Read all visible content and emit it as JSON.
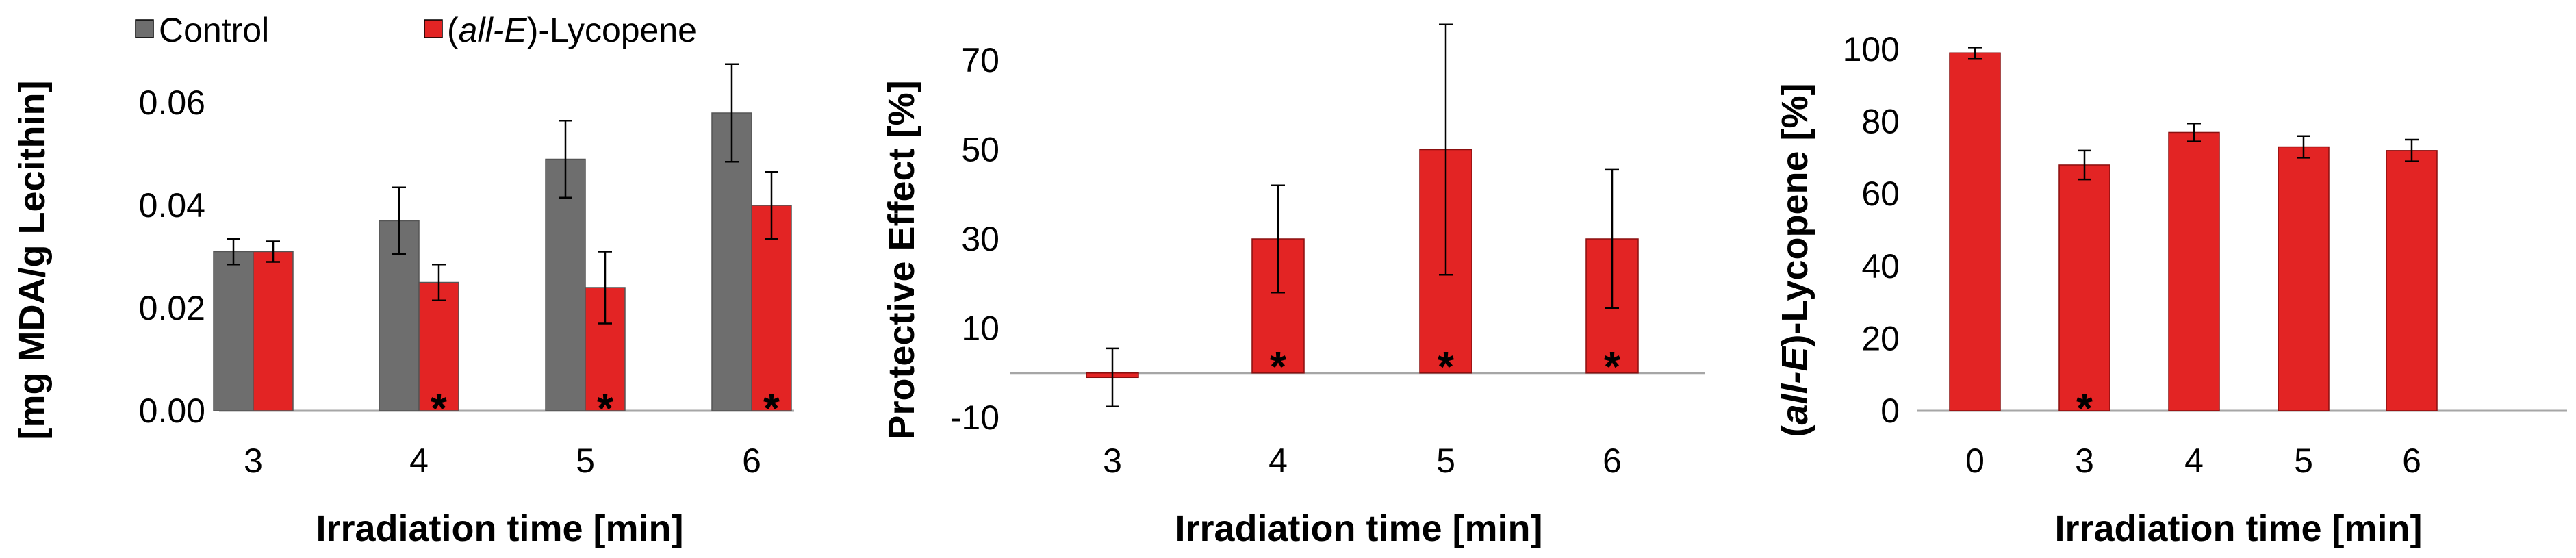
{
  "colors": {
    "control": "#6e6e6e",
    "lycopene": "#e32424",
    "axis": "#a6a6a6",
    "error_bar": "#000000"
  },
  "legend": {
    "control": "Control",
    "lycopene_italic": "all-E",
    "lycopene_prefix": "(",
    "lycopene_suffix": ")-Lycopene"
  },
  "significance_marker": "*",
  "chart_data": [
    {
      "type": "bar",
      "title": "",
      "xlabel": "Irradiation time [min]",
      "ylabel": "[mg MDA/g Lecithin]",
      "categories": [
        "3",
        "4",
        "5",
        "6"
      ],
      "ylim": [
        0,
        0.06
      ],
      "yticks": [
        "0.00",
        "0.02",
        "0.04",
        "0.06"
      ],
      "series": [
        {
          "name": "Control",
          "color_key": "control",
          "values": [
            0.031,
            0.037,
            0.049,
            0.058
          ],
          "errors": [
            0.0025,
            0.0065,
            0.0075,
            0.0095
          ],
          "significant": [
            false,
            false,
            false,
            false
          ]
        },
        {
          "name": "(all-E)-Lycopene",
          "color_key": "lycopene",
          "values": [
            0.031,
            0.025,
            0.024,
            0.04
          ],
          "errors": [
            0.002,
            0.0035,
            0.007,
            0.0065
          ],
          "significant": [
            false,
            true,
            true,
            true
          ]
        }
      ]
    },
    {
      "type": "bar",
      "title": "",
      "xlabel": "Irradiation time [min]",
      "ylabel": "Protective Effect [%]",
      "categories": [
        "3",
        "4",
        "5",
        "6"
      ],
      "ylim": [
        -10,
        70
      ],
      "yticks": [
        "-10",
        "10",
        "30",
        "50",
        "70"
      ],
      "series": [
        {
          "name": "",
          "color_key": "lycopene",
          "values": [
            -1,
            30,
            50,
            30
          ],
          "errors": [
            6.5,
            12,
            28,
            15.5
          ],
          "significant": [
            false,
            true,
            true,
            true
          ]
        }
      ]
    },
    {
      "type": "bar",
      "title": "",
      "xlabel": "Irradiation time [min]",
      "ylabel": "(all-E)-Lycopene [%]",
      "categories": [
        "0",
        "3",
        "4",
        "5",
        "6"
      ],
      "ylim": [
        0,
        100
      ],
      "yticks": [
        "0",
        "20",
        "40",
        "60",
        "80",
        "100"
      ],
      "series": [
        {
          "name": "",
          "color_key": "lycopene",
          "values": [
            99,
            68,
            77,
            73,
            72
          ],
          "errors": [
            1.5,
            4,
            2.5,
            3,
            3
          ],
          "significant": [
            false,
            true,
            false,
            false,
            false
          ]
        }
      ]
    }
  ]
}
